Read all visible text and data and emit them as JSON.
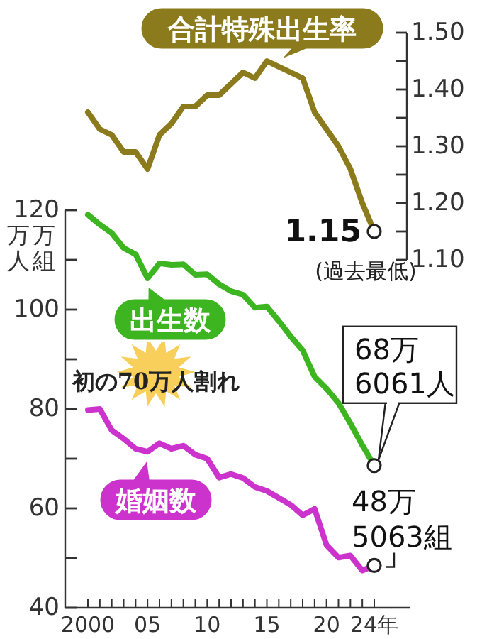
{
  "chart_data": [
    {
      "type": "line",
      "categories": [
        null,
        null,
        null,
        null,
        null,
        null,
        null,
        null,
        null,
        null,
        null,
        null,
        null,
        null,
        null,
        null,
        null,
        null,
        null,
        null,
        null,
        null,
        null,
        null,
        null
      ],
      "series": [
        {
          "name": "合計特殊出生率",
          "color": "#8c7b1c",
          "values": [
            1.36,
            1.33,
            1.32,
            1.29,
            1.29,
            1.26,
            1.32,
            1.34,
            1.37,
            1.37,
            1.39,
            1.39,
            1.41,
            1.43,
            1.42,
            1.45,
            1.44,
            1.43,
            1.42,
            1.36,
            1.33,
            1.3,
            1.26,
            1.2,
            1.15
          ],
          "value_labels": [
            null,
            null,
            null,
            null,
            null,
            null,
            null,
            null,
            null,
            null,
            null,
            null,
            null,
            null,
            null,
            null,
            null,
            null,
            null,
            null,
            null,
            null,
            null,
            null,
            "1.15"
          ]
        }
      ],
      "ylim": [
        1.1,
        1.5
      ],
      "yticks": [
        {
          "value": 1.1,
          "label": "1.10"
        },
        {
          "value": 1.15,
          "label": null
        },
        {
          "value": 1.2,
          "label": "1.20"
        },
        {
          "value": 1.25,
          "label": null
        },
        {
          "value": 1.3,
          "label": "1.30"
        },
        {
          "value": 1.35,
          "label": null
        },
        {
          "value": 1.4,
          "label": "1.40"
        },
        {
          "value": 1.45,
          "label": null
        },
        {
          "value": 1.5,
          "label": "1.50"
        }
      ],
      "tick_labels": "y",
      "annotations": [
        "(過去最低)"
      ]
    },
    {
      "type": "line",
      "categories": [
        "2000",
        null,
        null,
        null,
        null,
        "05",
        null,
        null,
        null,
        null,
        "10",
        null,
        null,
        null,
        null,
        "15",
        null,
        null,
        null,
        null,
        "20",
        null,
        null,
        null,
        "24年"
      ],
      "series": [
        {
          "name": "出生数",
          "color": "#3cb521",
          "values": [
            119.1,
            117.1,
            115.4,
            112.4,
            111.1,
            106.3,
            109.3,
            109.0,
            109.1,
            107.0,
            107.1,
            105.1,
            103.7,
            103.0,
            100.4,
            100.6,
            97.7,
            94.6,
            91.8,
            86.5,
            84.1,
            81.2,
            77.1,
            72.7,
            68.6061
          ]
        },
        {
          "name": "婚姻数",
          "color": "#cc33cc",
          "values": [
            79.8,
            80.0,
            75.7,
            74.0,
            72.0,
            71.4,
            73.1,
            72.0,
            72.6,
            70.8,
            70.0,
            66.2,
            66.9,
            66.1,
            64.3,
            63.5,
            62.1,
            60.7,
            58.6,
            59.9,
            52.6,
            50.1,
            50.5,
            47.5,
            48.5063
          ]
        }
      ],
      "ylabel": "万人万組",
      "ylim": [
        40,
        120
      ],
      "yticks": [
        40,
        {
          "value": 50,
          "label": null
        },
        60,
        {
          "value": 70,
          "label": null
        },
        80,
        {
          "value": 90,
          "label": null
        },
        100,
        {
          "value": 110,
          "label": null
        },
        120
      ],
      "annotations": [
        "初の70万人割れ",
        {
          "text": "68万\n6061人",
          "x": "24年",
          "y": 68.6061
        },
        {
          "text": "48万\n5063組",
          "x": "24年",
          "y": 48.5063
        }
      ]
    }
  ]
}
